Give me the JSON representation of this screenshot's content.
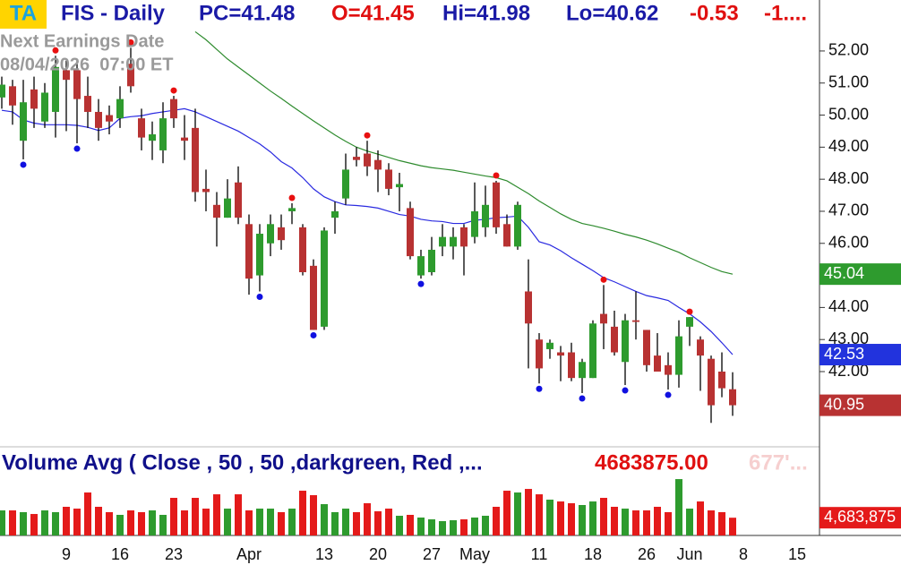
{
  "chart_data": [
    {
      "type": "candlestick",
      "badge": "TA",
      "title": "FIS - Daily",
      "header": [
        {
          "text": "PC=41.48",
          "color": "#1a1aa6"
        },
        {
          "text": "O=41.45",
          "color": "#e01010"
        },
        {
          "text": "Hi=41.98",
          "color": "#1a1aa6"
        },
        {
          "text": "Lo=40.62",
          "color": "#1a1aa6"
        },
        {
          "text": "-0.53",
          "color": "#e01010"
        },
        {
          "text": "-1....",
          "color": "#e01010"
        }
      ],
      "earnings_title": "Next Earnings Date",
      "earnings_date": "08/04/2026  07:00 ET",
      "up_color": "#2e9b2e",
      "down_color": "#b83232",
      "open": [
        50.55,
        50.9,
        49.2,
        50.8,
        49.8,
        50.1,
        51.4,
        51.4,
        50.6,
        50.1,
        50.0,
        49.9,
        51.6,
        49.9,
        49.2,
        48.9,
        50.5,
        49.3,
        49.6,
        47.7,
        47.2,
        46.8,
        47.9,
        46.6,
        45.0,
        46.0,
        46.5,
        47.0,
        46.5,
        45.3,
        43.4,
        46.8,
        47.4,
        48.7,
        48.8,
        48.6,
        48.3,
        47.75,
        47.1,
        45.0,
        45.1,
        45.9,
        45.9,
        46.5,
        46.2,
        46.5,
        47.9,
        46.6,
        45.9,
        44.5,
        43.0,
        42.7,
        42.6,
        42.6,
        41.8,
        41.8,
        43.8,
        43.4,
        42.3,
        43.6,
        43.3,
        42.5,
        42.2,
        41.9,
        43.4,
        43.0,
        42.4,
        42.0,
        41.45,
        null,
        null,
        null,
        null,
        null,
        null
      ],
      "high": [
        51.2,
        51.1,
        51.1,
        51.2,
        51.0,
        51.85,
        51.7,
        51.7,
        51.2,
        50.5,
        50.3,
        50.9,
        52.1,
        50.2,
        49.8,
        50.4,
        50.6,
        50.0,
        50.2,
        48.3,
        47.6,
        48.0,
        48.4,
        46.9,
        46.6,
        46.9,
        46.9,
        47.25,
        46.6,
        45.5,
        46.5,
        47.3,
        48.8,
        49.0,
        49.2,
        48.9,
        48.5,
        48.2,
        47.3,
        45.8,
        46.2,
        46.6,
        46.5,
        46.6,
        47.9,
        47.8,
        47.95,
        46.9,
        47.3,
        45.5,
        43.2,
        43.0,
        42.8,
        42.9,
        42.4,
        43.6,
        44.7,
        43.9,
        43.8,
        44.5,
        43.3,
        43.2,
        42.6,
        43.6,
        43.7,
        43.1,
        42.5,
        42.6,
        41.98,
        null,
        null,
        null,
        null,
        null,
        null
      ],
      "low": [
        50.2,
        49.7,
        48.62,
        49.6,
        49.6,
        49.3,
        49.5,
        49.12,
        49.6,
        49.2,
        49.4,
        49.6,
        50.7,
        48.9,
        48.6,
        48.5,
        49.6,
        48.6,
        47.3,
        47.0,
        45.9,
        46.8,
        46.6,
        44.4,
        44.5,
        45.6,
        45.8,
        46.6,
        45.0,
        43.3,
        43.3,
        46.3,
        47.2,
        48.4,
        48.1,
        47.6,
        47.5,
        47.0,
        45.5,
        44.9,
        45.0,
        45.6,
        45.5,
        45.0,
        46.0,
        46.2,
        46.3,
        45.9,
        45.8,
        42.1,
        41.63,
        42.4,
        41.7,
        41.7,
        41.33,
        41.8,
        42.7,
        42.5,
        41.58,
        43.0,
        42.0,
        42.0,
        41.44,
        41.5,
        42.8,
        41.4,
        40.4,
        41.2,
        40.62,
        null,
        null,
        null,
        null,
        null,
        null
      ],
      "close": [
        50.95,
        50.3,
        50.4,
        50.2,
        50.7,
        51.5,
        51.1,
        50.5,
        50.1,
        49.6,
        49.8,
        50.5,
        50.9,
        49.3,
        49.4,
        49.9,
        49.9,
        49.2,
        47.6,
        47.6,
        46.8,
        47.4,
        46.8,
        44.9,
        46.3,
        46.6,
        46.1,
        47.1,
        45.1,
        43.3,
        46.4,
        47.0,
        48.3,
        48.6,
        48.4,
        48.3,
        47.7,
        47.85,
        45.6,
        45.6,
        45.8,
        46.2,
        46.2,
        45.9,
        47.0,
        47.2,
        46.5,
        45.9,
        47.2,
        43.5,
        42.1,
        42.9,
        42.5,
        41.8,
        42.3,
        43.5,
        43.5,
        42.6,
        43.6,
        43.55,
        42.2,
        42.0,
        41.9,
        43.1,
        43.7,
        42.5,
        40.95,
        41.48,
        40.95,
        null,
        null,
        null,
        null,
        null,
        null
      ],
      "last_close_label": "40.95",
      "high_markers": [
        5,
        12,
        16,
        27,
        34,
        46,
        56,
        64
      ],
      "low_markers": [
        2,
        7,
        24,
        29,
        39,
        50,
        54,
        58,
        62
      ],
      "marker_colors": {
        "high": "#e81010",
        "low": "#1010e0"
      },
      "lines": [
        {
          "color": "#2a2ae0",
          "label_color": "#2233dd",
          "end_label": "42.53",
          "values": [
            50.15,
            50.1,
            49.85,
            49.75,
            49.7,
            49.7,
            49.7,
            49.68,
            49.62,
            49.52,
            49.6,
            49.9,
            49.95,
            49.98,
            50.05,
            50.1,
            50.15,
            50.2,
            50.1,
            49.95,
            49.8,
            49.65,
            49.5,
            49.3,
            49.1,
            48.85,
            48.55,
            48.35,
            48.05,
            47.7,
            47.45,
            47.3,
            47.2,
            47.18,
            47.15,
            47.1,
            47.0,
            46.9,
            46.85,
            46.75,
            46.7,
            46.68,
            46.62,
            46.62,
            46.72,
            46.75,
            46.8,
            46.82,
            46.85,
            46.5,
            46.05,
            45.95,
            45.77,
            45.55,
            45.35,
            45.15,
            44.93,
            44.8,
            44.65,
            44.5,
            44.37,
            44.3,
            44.22,
            44.0,
            43.8,
            43.55,
            43.25,
            42.9,
            42.53,
            null,
            null,
            null,
            null,
            null,
            null
          ]
        },
        {
          "color": "#2e8b2e",
          "label_color": "#2e9b2e",
          "end_label": "45.04",
          "values": [
            null,
            null,
            null,
            null,
            null,
            null,
            null,
            null,
            null,
            null,
            null,
            null,
            null,
            null,
            null,
            null,
            null,
            null,
            52.6,
            52.35,
            52.05,
            51.75,
            51.5,
            51.25,
            51.0,
            50.75,
            50.52,
            50.28,
            50.05,
            49.82,
            49.6,
            49.38,
            49.18,
            49.0,
            48.88,
            48.78,
            48.68,
            48.58,
            48.5,
            48.42,
            48.36,
            48.32,
            48.28,
            48.22,
            48.16,
            48.1,
            48.05,
            47.95,
            47.75,
            47.55,
            47.32,
            47.12,
            46.92,
            46.75,
            46.62,
            46.55,
            46.47,
            46.38,
            46.28,
            46.2,
            46.1,
            45.98,
            45.85,
            45.72,
            45.55,
            45.4,
            45.25,
            45.12,
            45.04,
            null,
            null,
            null,
            null,
            null,
            null
          ]
        }
      ],
      "ylim": [
        39.71,
        53.59
      ],
      "yticks": [
        {
          "value": 42,
          "label": "42.00"
        },
        {
          "value": 43,
          "label": "43.00"
        },
        {
          "value": 44,
          "label": "44.00"
        },
        {
          "value": 46,
          "label": "46.00"
        },
        {
          "value": 47,
          "label": "47.00"
        },
        {
          "value": 48,
          "label": "48.00"
        },
        {
          "value": 49,
          "label": "49.00"
        },
        {
          "value": 50,
          "label": "50.00"
        },
        {
          "value": 51,
          "label": "51.00"
        },
        {
          "value": 52,
          "label": "52.00"
        }
      ]
    },
    {
      "type": "bar",
      "title": "Volume Avg ( Close , 50 , 50 ,darkgreen, Red ,...",
      "last_value_label": "4683875.00",
      "faded_label": "677'...",
      "end_label": "4,683,875",
      "categories": [
        null,
        null,
        null,
        null,
        null,
        null,
        "9",
        null,
        null,
        null,
        null,
        "16",
        null,
        null,
        null,
        null,
        "23",
        null,
        null,
        null,
        null,
        null,
        null,
        "Apr",
        null,
        null,
        null,
        null,
        null,
        null,
        "13",
        null,
        null,
        null,
        null,
        "20",
        null,
        null,
        null,
        null,
        "27",
        null,
        null,
        null,
        "May",
        null,
        null,
        null,
        null,
        null,
        "11",
        null,
        null,
        null,
        null,
        "18",
        null,
        null,
        null,
        null,
        "26",
        null,
        null,
        null,
        "Jun",
        null,
        null,
        null,
        null,
        "8",
        null,
        null,
        null,
        null,
        "15"
      ],
      "values": [
        6620000,
        6620000,
        6150000,
        5670000,
        6620000,
        6150000,
        7570000,
        7090000,
        11350000,
        7570000,
        6150000,
        5440000,
        6620000,
        6150000,
        6620000,
        5440000,
        9930000,
        6620000,
        9930000,
        7090000,
        10870000,
        7090000,
        10870000,
        6620000,
        7090000,
        7090000,
        6150000,
        7090000,
        11820000,
        10640000,
        8270000,
        6150000,
        7090000,
        6150000,
        8510000,
        6380000,
        7090000,
        5200000,
        5440000,
        4730000,
        4260000,
        3780000,
        4020000,
        4260000,
        4730000,
        5200000,
        7570000,
        11820000,
        11350000,
        12290000,
        10870000,
        9460000,
        8980000,
        8510000,
        8040000,
        8980000,
        9930000,
        7570000,
        7090000,
        6620000,
        6620000,
        7570000,
        6150000,
        14890000,
        7090000,
        8980000,
        6620000,
        6150000,
        4683875,
        null,
        null,
        null,
        null,
        null,
        null
      ],
      "ylim": [
        0,
        22000000
      ]
    }
  ]
}
